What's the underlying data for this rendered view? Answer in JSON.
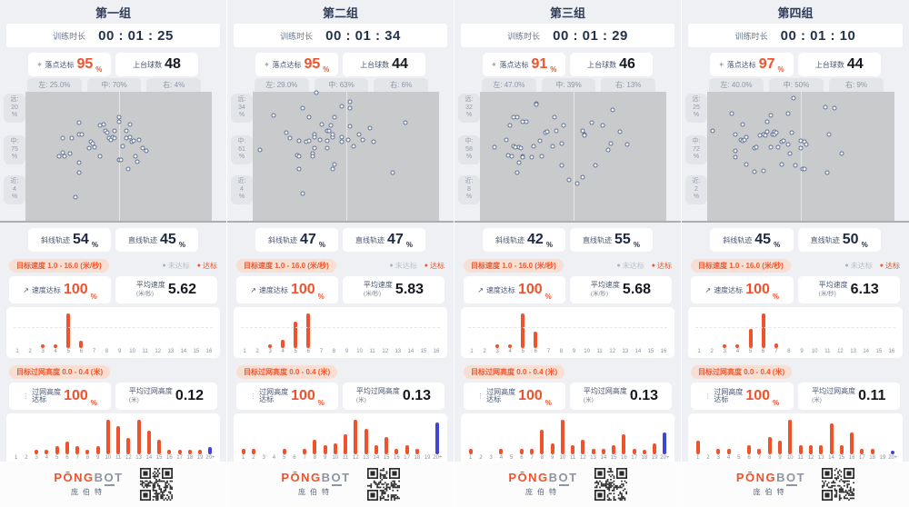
{
  "colors": {
    "accent_orange": "#f0522c",
    "bar_blue": "#4144d4",
    "navy": "#2f3c5c",
    "scatter_bg": "#c9cacb",
    "pill_bg": "#e3e5e9",
    "badge_bg": "#f8dfd4"
  },
  "icons": {
    "landing": "∗",
    "speed_trend": "↗",
    "height_rate": "⋮",
    "legend_dot": "●"
  },
  "labels": {
    "duration": "训练时长",
    "landing_rate": "落点达标",
    "balls": "上台球数",
    "far": "远:",
    "middle": "中:",
    "near": "近:",
    "pct": "%",
    "diagonal": "斜线轨迹",
    "straight": "直线轨迹",
    "target_speed": "目标速度 1.0 - 16.0 (米/秒)",
    "legend_fail": "未达标",
    "legend_pass": "达标",
    "speed_rate": "速度达标",
    "avg_speed": "平均速度",
    "avg_speed_unit": "(米/秒)",
    "target_height": "目标过网高度 0.0 - 0.4 (米)",
    "height_rate_l1": "过网高度",
    "height_rate_l2": "达标",
    "avg_height": "平均过网高度",
    "avg_height_unit": "(米)",
    "brand_p1": "PŌNG",
    "brand_p2": "B",
    "brand_p3": "O",
    "brand_p4": "T",
    "brand_cn": "庞伯特"
  },
  "groups": [
    {
      "title": "第一组",
      "duration": "00 : 01 : 25",
      "landing_rate": "95",
      "balls": "48",
      "zone_left": "左: 25.0%",
      "zone_mid": "中: 70%",
      "zone_right": "右: 4%",
      "far": "20",
      "middle": "75",
      "near": "4",
      "diagonal": "54",
      "straight": "45",
      "speed_rate": "100",
      "avg_speed": "5.62",
      "height_rate": "100",
      "avg_height": "0.12"
    },
    {
      "title": "第二组",
      "duration": "00 : 01 : 34",
      "landing_rate": "95",
      "balls": "44",
      "zone_left": "左: 29.0%",
      "zone_mid": "中: 63%",
      "zone_right": "右: 6%",
      "far": "34",
      "middle": "61",
      "near": "4",
      "diagonal": "47",
      "straight": "47",
      "speed_rate": "100",
      "avg_speed": "5.83",
      "height_rate": "100",
      "avg_height": "0.13"
    },
    {
      "title": "第三组",
      "duration": "00 : 01 : 29",
      "landing_rate": "91",
      "balls": "46",
      "zone_left": "左: 47.0%",
      "zone_mid": "中: 39%",
      "zone_right": "右: 13%",
      "far": "32",
      "middle": "58",
      "near": "8",
      "diagonal": "42",
      "straight": "55",
      "speed_rate": "100",
      "avg_speed": "5.68",
      "height_rate": "100",
      "avg_height": "0.13"
    },
    {
      "title": "第四组",
      "duration": "00 : 01 : 10",
      "landing_rate": "97",
      "balls": "44",
      "zone_left": "左: 40.0%",
      "zone_mid": "中: 50%",
      "zone_right": "右: 9%",
      "far": "25",
      "middle": "72",
      "near": "2",
      "diagonal": "45",
      "straight": "50",
      "speed_rate": "100",
      "avg_speed": "6.13",
      "height_rate": "100",
      "avg_height": "0.11"
    }
  ],
  "chart_data": [
    {
      "group": "第一组",
      "scatter": {
        "type": "scatter",
        "points_pct": [
          [
            29,
            24
          ],
          [
            40,
            26
          ],
          [
            42,
            25
          ],
          [
            50,
            20
          ],
          [
            50,
            23
          ],
          [
            56,
            25
          ],
          [
            29,
            33
          ],
          [
            30,
            33
          ],
          [
            20,
            36
          ],
          [
            25,
            36
          ],
          [
            43,
            30
          ],
          [
            44,
            32
          ],
          [
            48,
            30
          ],
          [
            45,
            36
          ],
          [
            46,
            37
          ],
          [
            47,
            35
          ],
          [
            48,
            36
          ],
          [
            54,
            30
          ],
          [
            54,
            36
          ],
          [
            56,
            35
          ],
          [
            57,
            39
          ],
          [
            58,
            38
          ],
          [
            61,
            37
          ],
          [
            52,
            42
          ],
          [
            35,
            39
          ],
          [
            36,
            40
          ],
          [
            37,
            43
          ],
          [
            34,
            44
          ],
          [
            20,
            47
          ],
          [
            24,
            48
          ],
          [
            18,
            50
          ],
          [
            21,
            50
          ],
          [
            40,
            50
          ],
          [
            63,
            44
          ],
          [
            65,
            46
          ],
          [
            59,
            50
          ],
          [
            60,
            54
          ],
          [
            50,
            53
          ],
          [
            51,
            53
          ],
          [
            29,
            55
          ],
          [
            29,
            63
          ],
          [
            55,
            60
          ],
          [
            27,
            82
          ]
        ]
      },
      "speed_hist": {
        "type": "bar",
        "x": [
          "1",
          "2",
          "3",
          "4",
          "5",
          "6",
          "7",
          "8",
          "9",
          "10",
          "11",
          "12",
          "13",
          "14",
          "15",
          "16"
        ],
        "values": [
          0,
          0,
          1,
          1,
          37,
          8,
          0,
          0,
          0,
          0,
          0,
          0,
          0,
          0,
          0,
          0
        ]
      },
      "height_hist": {
        "type": "bar",
        "x": [
          "1",
          "2",
          "3",
          "4",
          "5",
          "6",
          "7",
          "8",
          "9",
          "10",
          "11",
          "12",
          "13",
          "14",
          "15",
          "16",
          "17",
          "18",
          "19",
          "20+"
        ],
        "values": [
          0,
          0,
          1,
          1,
          2,
          3,
          2,
          1,
          2,
          8,
          6.5,
          3.7,
          8,
          5.5,
          3.4,
          1,
          1,
          1,
          1,
          1.7
        ]
      }
    },
    {
      "group": "第二组",
      "scatter": {
        "type": "scatter",
        "points_pct": [
          [
            34,
            1
          ],
          [
            48,
            11
          ],
          [
            52,
            8
          ],
          [
            52,
            13
          ],
          [
            27,
            13
          ],
          [
            11,
            18
          ],
          [
            30,
            20
          ],
          [
            44,
            20
          ],
          [
            37,
            25
          ],
          [
            42,
            26
          ],
          [
            82,
            24
          ],
          [
            52,
            27
          ],
          [
            63,
            28
          ],
          [
            18,
            32
          ],
          [
            20,
            36
          ],
          [
            25,
            38
          ],
          [
            29,
            39
          ],
          [
            30,
            38
          ],
          [
            33,
            33
          ],
          [
            33,
            35
          ],
          [
            36,
            37
          ],
          [
            40,
            30
          ],
          [
            41,
            30
          ],
          [
            40,
            38
          ],
          [
            43,
            35
          ],
          [
            43,
            33
          ],
          [
            48,
            35
          ],
          [
            48,
            39
          ],
          [
            51,
            37
          ],
          [
            57,
            33
          ],
          [
            59,
            37
          ],
          [
            65,
            39
          ],
          [
            54,
            42
          ],
          [
            33,
            44
          ],
          [
            40,
            44
          ],
          [
            4,
            45
          ],
          [
            24,
            49
          ],
          [
            25,
            50
          ],
          [
            32,
            48
          ],
          [
            32,
            50
          ],
          [
            44,
            56
          ],
          [
            25,
            60
          ],
          [
            43,
            60
          ],
          [
            75,
            63
          ],
          [
            27,
            79
          ]
        ]
      },
      "speed_hist": {
        "type": "bar",
        "x": [
          "1",
          "2",
          "3",
          "4",
          "5",
          "6",
          "7",
          "8",
          "9",
          "10",
          "11",
          "12",
          "13",
          "14",
          "15",
          "16"
        ],
        "values": [
          0,
          0,
          1,
          5,
          16,
          21,
          0,
          0,
          0,
          0,
          0,
          0,
          0,
          0,
          0,
          0
        ]
      },
      "height_hist": {
        "type": "bar",
        "x": [
          "1",
          "2",
          "3",
          "4",
          "5",
          "6",
          "7",
          "8",
          "9",
          "10",
          "11",
          "12",
          "13",
          "14",
          "15",
          "16",
          "17",
          "18",
          "19",
          "20+"
        ],
        "values": [
          1,
          1,
          0,
          0,
          1,
          0,
          1,
          2.8,
          1.7,
          2.2,
          3.9,
          6.7,
          5,
          1.7,
          3.3,
          1,
          1.7,
          1,
          0,
          6.1
        ]
      }
    },
    {
      "group": "第三组",
      "scatter": {
        "type": "scatter",
        "points_pct": [
          [
            30,
            9
          ],
          [
            30,
            10
          ],
          [
            71,
            14
          ],
          [
            18,
            20
          ],
          [
            20,
            20
          ],
          [
            23,
            23
          ],
          [
            25,
            23
          ],
          [
            40,
            20
          ],
          [
            45,
            26
          ],
          [
            60,
            24
          ],
          [
            66,
            26
          ],
          [
            16,
            26
          ],
          [
            35,
            32
          ],
          [
            36,
            31
          ],
          [
            41,
            30
          ],
          [
            55,
            30
          ],
          [
            56,
            33
          ],
          [
            56,
            34
          ],
          [
            75,
            31
          ],
          [
            14,
            37
          ],
          [
            8,
            43
          ],
          [
            18,
            42
          ],
          [
            19,
            43
          ],
          [
            21,
            43
          ],
          [
            22,
            44
          ],
          [
            29,
            42
          ],
          [
            32,
            38
          ],
          [
            39,
            42
          ],
          [
            44,
            40
          ],
          [
            70,
            40
          ],
          [
            79,
            41
          ],
          [
            69,
            45
          ],
          [
            15,
            49
          ],
          [
            17,
            50
          ],
          [
            23,
            50
          ],
          [
            23,
            51
          ],
          [
            28,
            51
          ],
          [
            33,
            50
          ],
          [
            21,
            55
          ],
          [
            20,
            63
          ],
          [
            44,
            57
          ],
          [
            62,
            57
          ],
          [
            48,
            68
          ],
          [
            52,
            71
          ],
          [
            55,
            66
          ]
        ]
      },
      "speed_hist": {
        "type": "bar",
        "x": [
          "1",
          "2",
          "3",
          "4",
          "5",
          "6",
          "7",
          "8",
          "9",
          "10",
          "11",
          "12",
          "13",
          "14",
          "15",
          "16"
        ],
        "values": [
          0,
          0,
          1,
          1,
          30,
          14,
          0,
          0,
          0,
          0,
          0,
          0,
          0,
          0,
          0,
          0
        ]
      },
      "height_hist": {
        "type": "bar",
        "x": [
          "1",
          "2",
          "3",
          "4",
          "5",
          "6",
          "7",
          "8",
          "9",
          "10",
          "11",
          "12",
          "13",
          "14",
          "15",
          "16",
          "17",
          "18",
          "19",
          "20+"
        ],
        "values": [
          1,
          0,
          0,
          1,
          0,
          1,
          1,
          4.8,
          2.2,
          6.7,
          1.7,
          2.8,
          1,
          1,
          1.7,
          3.9,
          1,
          0.8,
          2.2,
          4.3
        ]
      }
    },
    {
      "group": "第四组",
      "scatter": {
        "type": "scatter",
        "points_pct": [
          [
            46,
            5
          ],
          [
            63,
            12
          ],
          [
            68,
            13
          ],
          [
            13,
            17
          ],
          [
            34,
            18
          ],
          [
            43,
            17
          ],
          [
            19,
            25
          ],
          [
            32,
            23
          ],
          [
            3,
            30
          ],
          [
            15,
            33
          ],
          [
            18,
            37
          ],
          [
            19,
            38
          ],
          [
            20,
            37
          ],
          [
            21,
            35
          ],
          [
            28,
            34
          ],
          [
            30,
            33
          ],
          [
            31,
            34
          ],
          [
            32,
            31
          ],
          [
            35,
            33
          ],
          [
            36,
            31
          ],
          [
            36,
            33
          ],
          [
            37,
            32
          ],
          [
            45,
            32
          ],
          [
            65,
            33
          ],
          [
            15,
            46
          ],
          [
            15,
            51
          ],
          [
            25,
            44
          ],
          [
            26,
            43
          ],
          [
            34,
            43
          ],
          [
            38,
            43
          ],
          [
            40,
            39
          ],
          [
            41,
            38
          ],
          [
            43,
            41
          ],
          [
            44,
            48
          ],
          [
            50,
            38
          ],
          [
            52,
            39
          ],
          [
            53,
            41
          ],
          [
            50,
            44
          ],
          [
            72,
            48
          ],
          [
            40,
            56
          ],
          [
            47,
            57
          ],
          [
            51,
            60
          ],
          [
            52,
            60
          ],
          [
            21,
            56
          ],
          [
            25,
            62
          ],
          [
            30,
            61
          ],
          [
            64,
            63
          ]
        ]
      },
      "speed_hist": {
        "type": "bar",
        "x": [
          "1",
          "2",
          "3",
          "4",
          "5",
          "6",
          "7",
          "8",
          "9",
          "10",
          "11",
          "12",
          "13",
          "14",
          "15",
          "16"
        ],
        "values": [
          0,
          0,
          1,
          1,
          14,
          25,
          3,
          0,
          0,
          0,
          0,
          0,
          0,
          0,
          0,
          0
        ]
      },
      "height_hist": {
        "type": "bar",
        "x": [
          "1",
          "2",
          "3",
          "4",
          "5",
          "6",
          "7",
          "8",
          "9",
          "10",
          "11",
          "12",
          "13",
          "14",
          "15",
          "16",
          "17",
          "18",
          "19",
          "20+"
        ],
        "values": [
          2.7,
          0,
          1,
          1,
          0,
          1.7,
          1,
          3.3,
          2.7,
          6.7,
          1.7,
          1.7,
          1.7,
          6,
          1.7,
          4.3,
          1,
          1,
          0,
          0.7
        ]
      }
    }
  ]
}
